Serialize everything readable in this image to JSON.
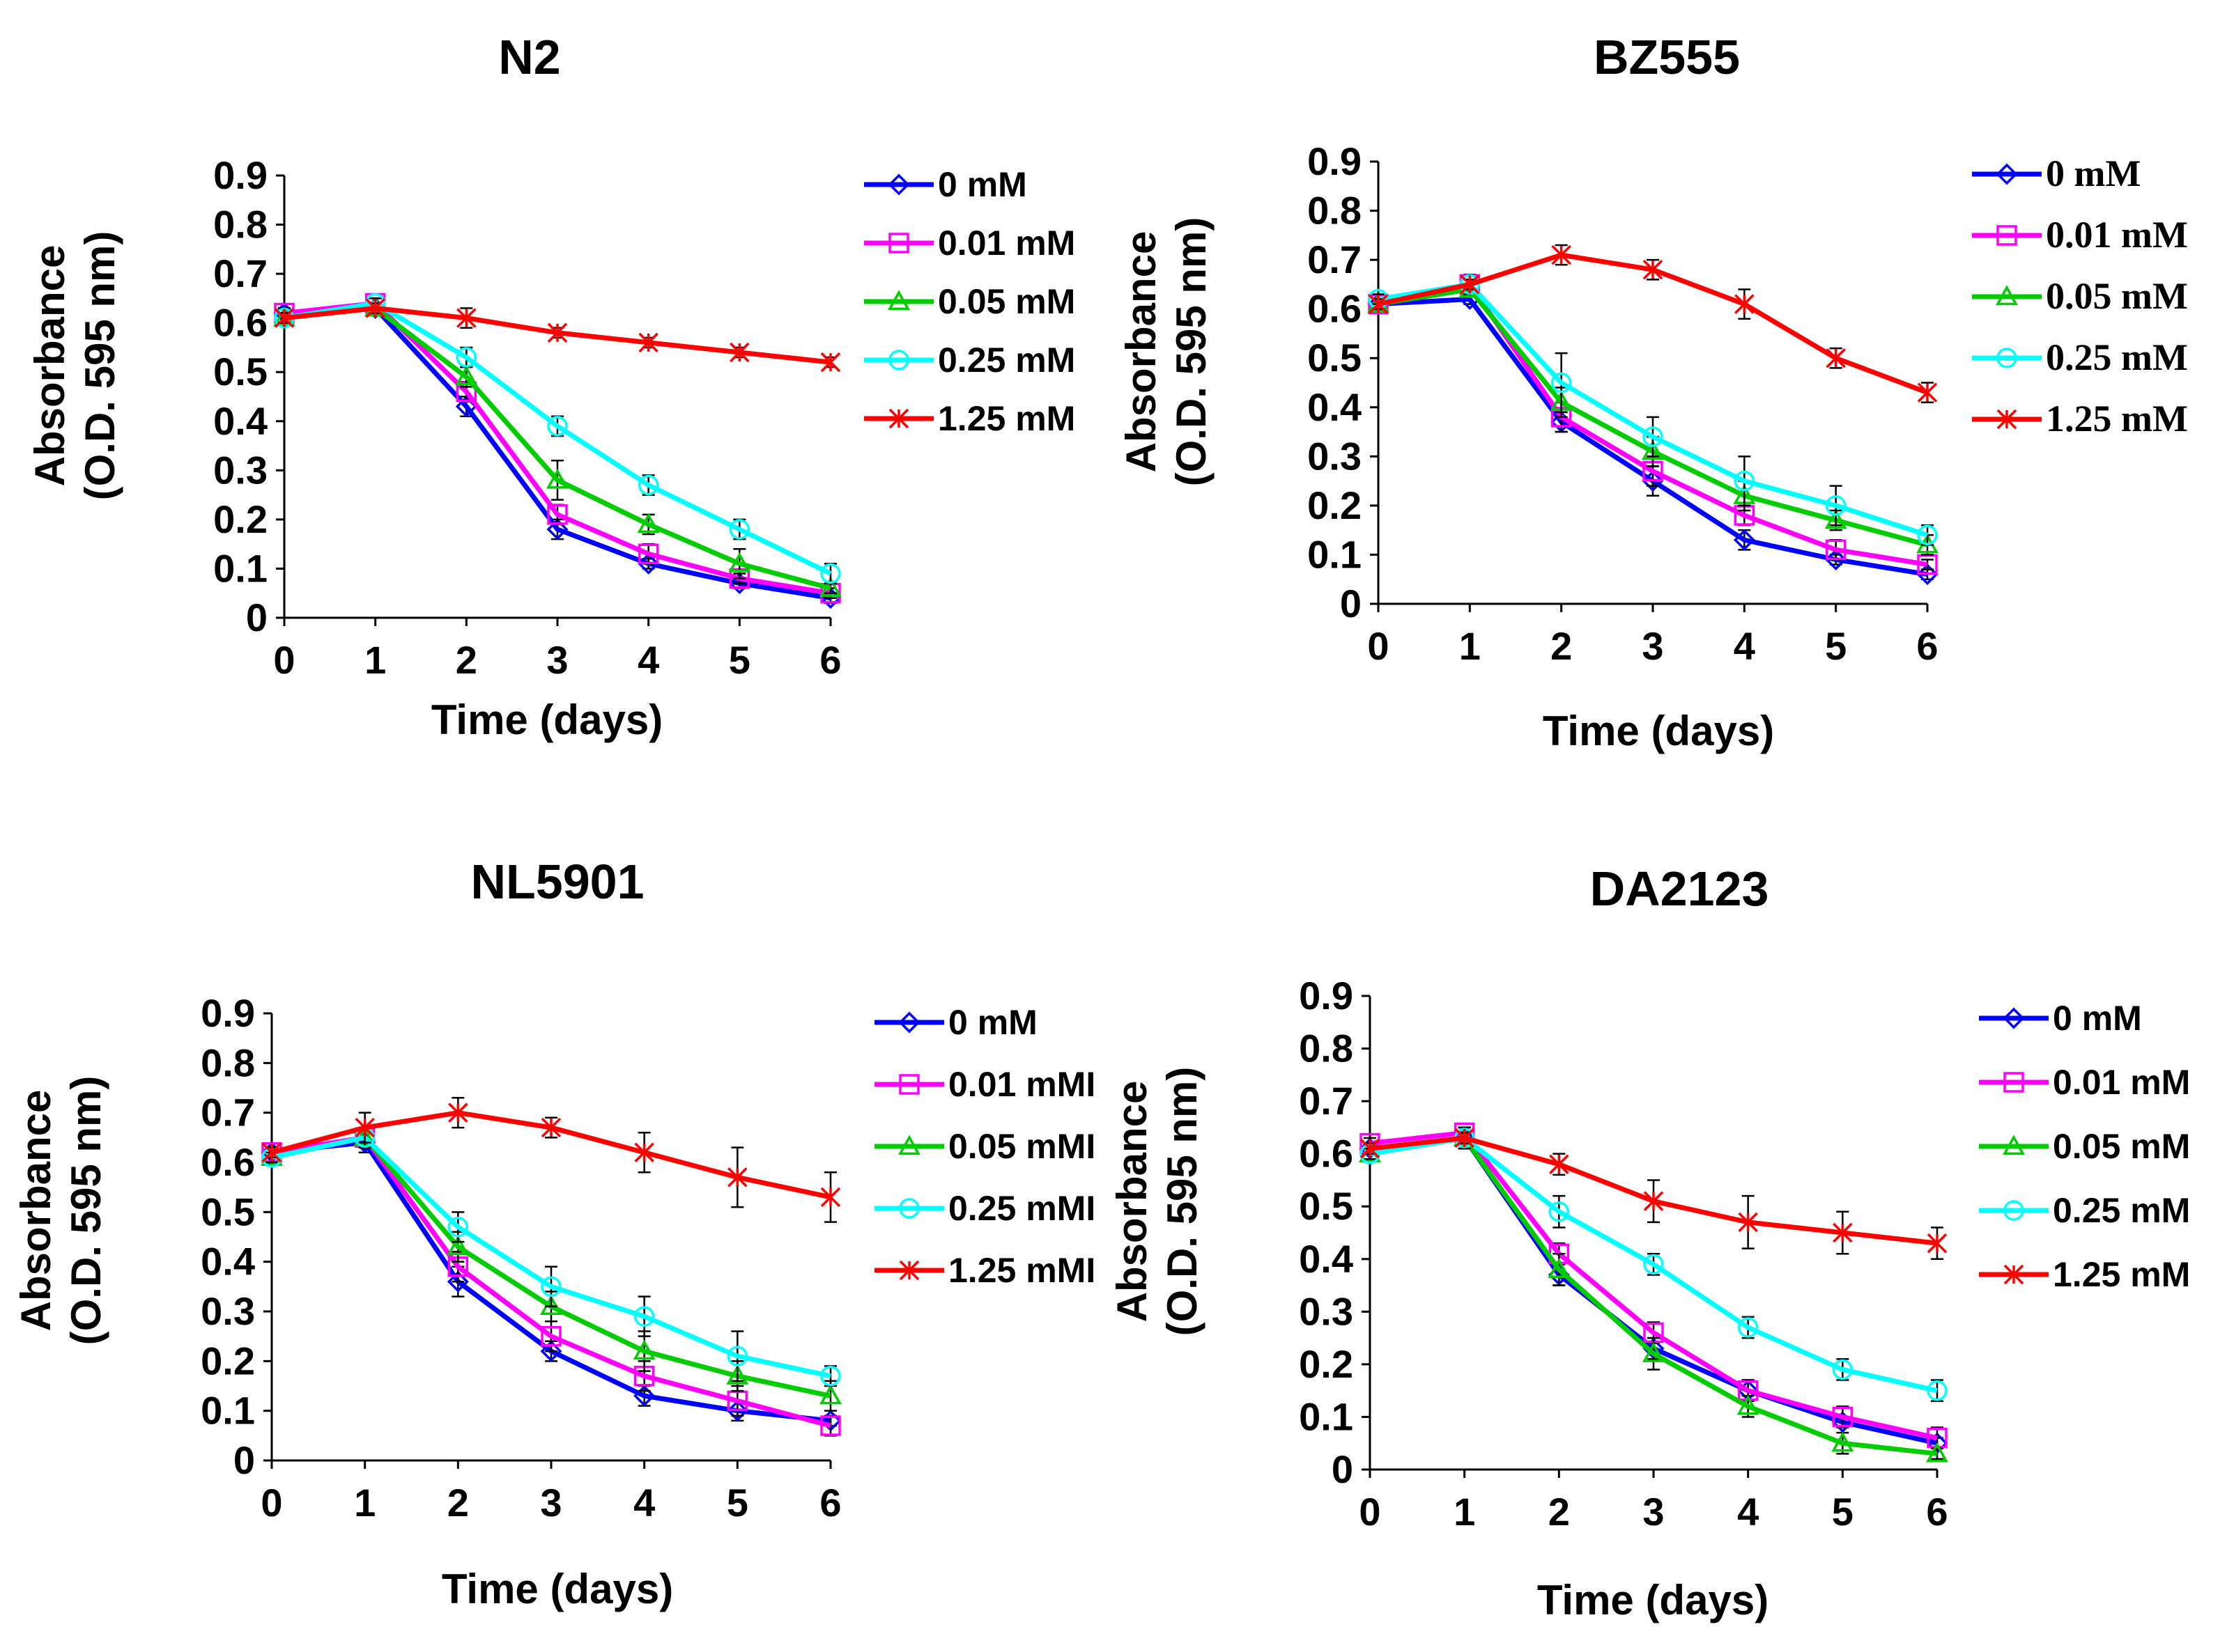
{
  "chart_data": [
    {
      "type": "line",
      "title": "N2",
      "xlabel": "Time (days)",
      "ylabel_lines": [
        "Absorbance",
        "(O.D. 595 nm)"
      ],
      "x": [
        0,
        1,
        2,
        3,
        4,
        5,
        6
      ],
      "x_tick_labels": [
        "0",
        "1",
        "2",
        "3",
        "4",
        "5",
        "6"
      ],
      "ylim": [
        0,
        0.9
      ],
      "y_tick_labels": [
        "0",
        "0.1",
        "0.2",
        "0.3",
        "0.4",
        "0.5",
        "0.6",
        "0.7",
        "0.8",
        "0.9"
      ],
      "legend_position": "right",
      "series": [
        {
          "name": "0 mM",
          "color": "#0000ff",
          "marker": "diamond",
          "values": [
            0.62,
            0.63,
            0.43,
            0.18,
            0.11,
            0.07,
            0.04
          ],
          "errors": [
            0.01,
            0.01,
            0.02,
            0.02,
            0.01,
            0.01,
            0.01
          ]
        },
        {
          "name": "0.01 mM",
          "color": "#ff00ff",
          "marker": "square",
          "values": [
            0.62,
            0.64,
            0.46,
            0.21,
            0.13,
            0.08,
            0.05
          ],
          "errors": [
            0.01,
            0.01,
            0.02,
            0.02,
            0.02,
            0.01,
            0.01
          ]
        },
        {
          "name": "0.05 mM",
          "color": "#00cc00",
          "marker": "triangle",
          "values": [
            0.61,
            0.63,
            0.49,
            0.28,
            0.19,
            0.11,
            0.06
          ],
          "errors": [
            0.01,
            0.01,
            0.02,
            0.04,
            0.02,
            0.03,
            0.01
          ]
        },
        {
          "name": "0.25 mM",
          "color": "#00ffff",
          "marker": "circle",
          "values": [
            0.61,
            0.64,
            0.53,
            0.39,
            0.27,
            0.18,
            0.09
          ],
          "errors": [
            0.01,
            0.01,
            0.02,
            0.02,
            0.02,
            0.02,
            0.02
          ]
        },
        {
          "name": "1.25 mM",
          "color": "#ff0000",
          "marker": "star",
          "values": [
            0.61,
            0.63,
            0.61,
            0.58,
            0.56,
            0.54,
            0.52
          ],
          "errors": [
            0.01,
            0.01,
            0.02,
            0.01,
            0.01,
            0.01,
            0.01
          ]
        }
      ]
    },
    {
      "type": "line",
      "title": "BZ555",
      "xlabel": "Time (days)",
      "ylabel_lines": [
        "Absorbance",
        "(O.D. 595 nm)"
      ],
      "x": [
        0,
        1,
        2,
        3,
        4,
        5,
        6
      ],
      "x_tick_labels": [
        "0",
        "1",
        "2",
        "3",
        "4",
        "5",
        "6"
      ],
      "ylim": [
        0,
        0.9
      ],
      "y_tick_labels": [
        "0",
        "0.1",
        "0.2",
        "0.3",
        "0.4",
        "0.5",
        "0.6",
        "0.7",
        "0.8",
        "0.9"
      ],
      "legend_position": "right",
      "series": [
        {
          "name": "0 mM",
          "color": "#0000ff",
          "marker": "diamond",
          "values": [
            0.61,
            0.62,
            0.37,
            0.25,
            0.13,
            0.09,
            0.06
          ],
          "errors": [
            0.01,
            0.01,
            0.02,
            0.03,
            0.02,
            0.01,
            0.01
          ]
        },
        {
          "name": "0.01 mM",
          "color": "#ff00ff",
          "marker": "square",
          "values": [
            0.61,
            0.65,
            0.38,
            0.27,
            0.18,
            0.11,
            0.08
          ],
          "errors": [
            0.01,
            0.02,
            0.03,
            0.03,
            0.02,
            0.02,
            0.01
          ]
        },
        {
          "name": "0.05 mM",
          "color": "#00cc00",
          "marker": "triangle",
          "values": [
            0.61,
            0.64,
            0.41,
            0.31,
            0.22,
            0.17,
            0.12
          ],
          "errors": [
            0.01,
            0.01,
            0.03,
            0.03,
            0.03,
            0.02,
            0.02
          ]
        },
        {
          "name": "0.25 mM",
          "color": "#00ffff",
          "marker": "circle",
          "values": [
            0.62,
            0.65,
            0.45,
            0.34,
            0.25,
            0.2,
            0.14
          ],
          "errors": [
            0.01,
            0.01,
            0.06,
            0.04,
            0.05,
            0.04,
            0.02
          ]
        },
        {
          "name": "1.25 mM",
          "color": "#ff0000",
          "marker": "star",
          "values": [
            0.61,
            0.65,
            0.71,
            0.68,
            0.61,
            0.5,
            0.43
          ],
          "errors": [
            0.01,
            0.01,
            0.02,
            0.02,
            0.03,
            0.02,
            0.02
          ]
        }
      ]
    },
    {
      "type": "line",
      "title": "NL5901",
      "xlabel": "Time (days)",
      "ylabel_lines": [
        "Absorbance",
        "(O.D. 595 nm)"
      ],
      "x": [
        0,
        1,
        2,
        3,
        4,
        5,
        6
      ],
      "x_tick_labels": [
        "0",
        "1",
        "2",
        "3",
        "4",
        "5",
        "6"
      ],
      "ylim": [
        0,
        0.9
      ],
      "y_tick_labels": [
        "0",
        "0.1",
        "0.2",
        "0.3",
        "0.4",
        "0.5",
        "0.6",
        "0.7",
        "0.8",
        "0.9"
      ],
      "legend_position": "right",
      "series": [
        {
          "name": "0 mM",
          "color": "#0000ff",
          "marker": "diamond",
          "values": [
            0.62,
            0.64,
            0.36,
            0.22,
            0.13,
            0.1,
            0.08
          ],
          "errors": [
            0.01,
            0.02,
            0.03,
            0.02,
            0.02,
            0.02,
            0.01
          ]
        },
        {
          "name": "0.01 mMI",
          "color": "#ff00ff",
          "marker": "square",
          "values": [
            0.62,
            0.65,
            0.39,
            0.25,
            0.17,
            0.12,
            0.07
          ],
          "errors": [
            0.01,
            0.02,
            0.03,
            0.03,
            0.03,
            0.03,
            0.02
          ]
        },
        {
          "name": "0.05 mMI",
          "color": "#00cc00",
          "marker": "triangle",
          "values": [
            0.61,
            0.65,
            0.43,
            0.31,
            0.22,
            0.17,
            0.13
          ],
          "errors": [
            0.01,
            0.02,
            0.03,
            0.03,
            0.04,
            0.03,
            0.03
          ]
        },
        {
          "name": "0.25 mMI",
          "color": "#00ffff",
          "marker": "circle",
          "values": [
            0.61,
            0.65,
            0.47,
            0.35,
            0.29,
            0.21,
            0.17
          ],
          "errors": [
            0.01,
            0.02,
            0.03,
            0.04,
            0.04,
            0.05,
            0.02
          ]
        },
        {
          "name": "1.25 mMI",
          "color": "#ff0000",
          "marker": "star",
          "values": [
            0.62,
            0.67,
            0.7,
            0.67,
            0.62,
            0.57,
            0.53
          ],
          "errors": [
            0.01,
            0.03,
            0.03,
            0.02,
            0.04,
            0.06,
            0.05
          ]
        }
      ]
    },
    {
      "type": "line",
      "title": "DA2123",
      "xlabel": "Time (days)",
      "ylabel_lines": [
        "Absorbance",
        "(O.D. 595 nm)"
      ],
      "x": [
        0,
        1,
        2,
        3,
        4,
        5,
        6
      ],
      "x_tick_labels": [
        "0",
        "1",
        "2",
        "3",
        "4",
        "5",
        "6"
      ],
      "ylim": [
        0,
        0.9
      ],
      "y_tick_labels": [
        "0",
        "0.1",
        "0.2",
        "0.3",
        "0.4",
        "0.5",
        "0.6",
        "0.7",
        "0.8",
        "0.9"
      ],
      "legend_position": "right",
      "series": [
        {
          "name": "0 mM",
          "color": "#0000ff",
          "marker": "diamond",
          "values": [
            0.61,
            0.63,
            0.37,
            0.23,
            0.15,
            0.09,
            0.05
          ],
          "errors": [
            0.01,
            0.02,
            0.02,
            0.02,
            0.02,
            0.01,
            0.01
          ]
        },
        {
          "name": "0.01 mM",
          "color": "#ff00ff",
          "marker": "square",
          "values": [
            0.62,
            0.64,
            0.41,
            0.26,
            0.15,
            0.1,
            0.06
          ],
          "errors": [
            0.01,
            0.01,
            0.02,
            0.02,
            0.02,
            0.02,
            0.02
          ]
        },
        {
          "name": "0.05 mM",
          "color": "#00cc00",
          "marker": "triangle",
          "values": [
            0.6,
            0.63,
            0.38,
            0.22,
            0.12,
            0.05,
            0.03
          ],
          "errors": [
            0.01,
            0.02,
            0.03,
            0.03,
            0.02,
            0.02,
            0.01
          ]
        },
        {
          "name": "0.25 mM",
          "color": "#00ffff",
          "marker": "circle",
          "values": [
            0.6,
            0.63,
            0.49,
            0.39,
            0.27,
            0.19,
            0.15
          ],
          "errors": [
            0.01,
            0.02,
            0.03,
            0.02,
            0.02,
            0.02,
            0.02
          ]
        },
        {
          "name": "1.25 mM",
          "color": "#ff0000",
          "marker": "star",
          "values": [
            0.61,
            0.63,
            0.58,
            0.51,
            0.47,
            0.45,
            0.43
          ],
          "errors": [
            0.01,
            0.01,
            0.02,
            0.04,
            0.05,
            0.04,
            0.03
          ]
        }
      ]
    }
  ]
}
